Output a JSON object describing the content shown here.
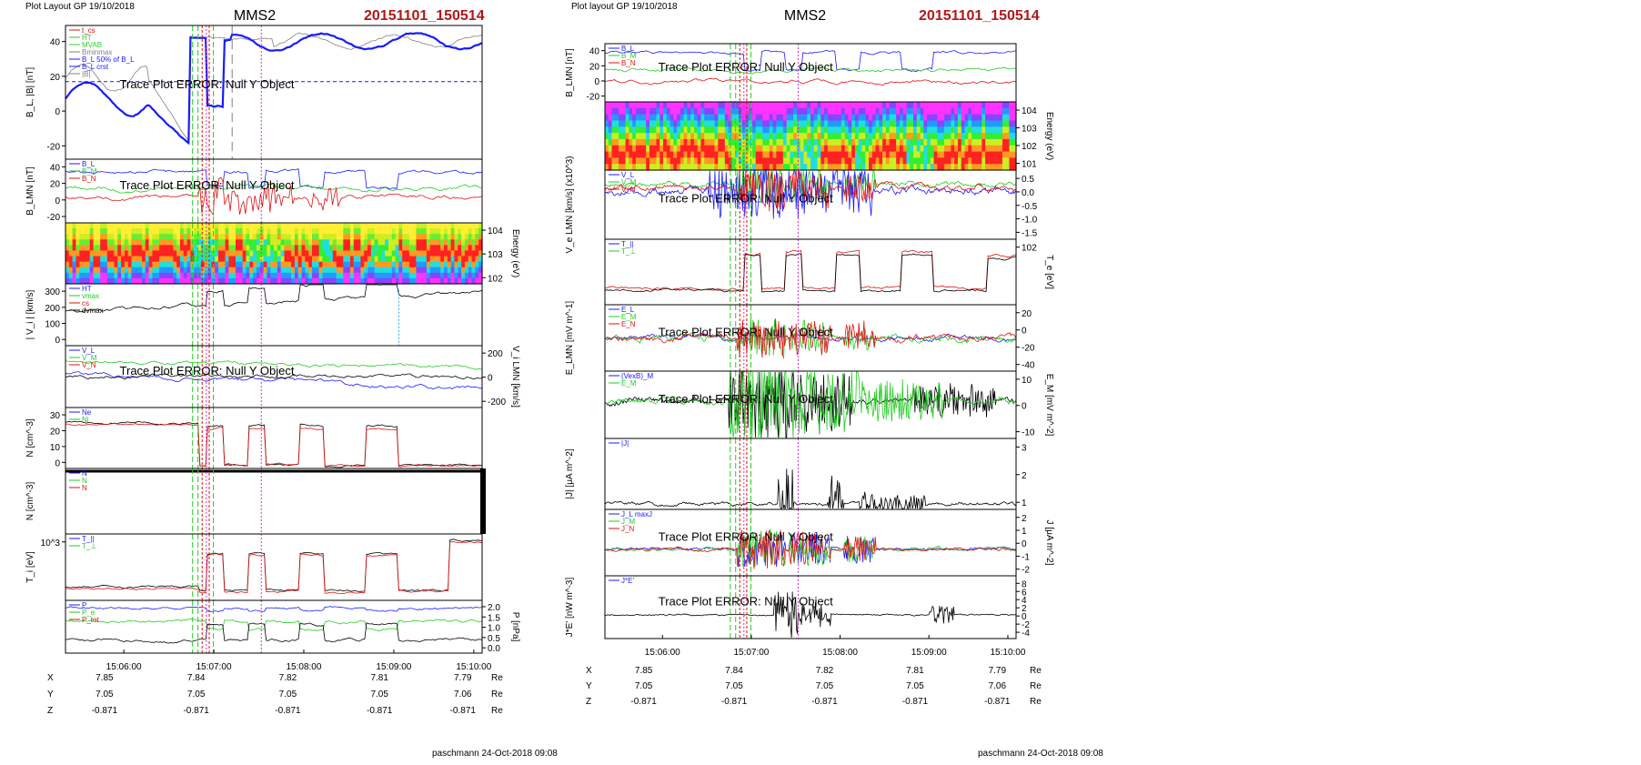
{
  "pages": [
    {
      "header_left": "Plot Layout GP 19/10/2018",
      "title": "MMS2",
      "event_id": "20151101_150514",
      "footer": "paschmann 24-Oct-2018 09:08",
      "panels": [
        {
          "ylabel": "B_L, |B| [nT]",
          "yticks": [
            "40",
            "20",
            "0",
            "-20"
          ],
          "legend": [
            "t_cs",
            "HT",
            "MVAB",
            "Bminmax",
            "B_L 50% of B_L",
            "B_L crst",
            "|B|"
          ],
          "error": "Trace Plot ERROR: Null Y Object"
        },
        {
          "ylabel": "B_LMN [nT]",
          "yticks": [
            "40",
            "20",
            "0",
            "-20"
          ],
          "legend": [
            "B_L",
            "B_M",
            "B_N"
          ],
          "error": "Trace Plot ERROR: Null Y Object"
        },
        {
          "ylabel": "Energy (eV)",
          "yticks": [
            "10^4",
            "10^3",
            "10^2"
          ]
        },
        {
          "ylabel": "| V_i | [km/s]",
          "yticks": [
            "300",
            "200",
            "100",
            "0"
          ],
          "legend": [
            "HT",
            "vmax",
            "cs",
            "dvmax"
          ]
        },
        {
          "ylabel": "V_i LMN [km/s]",
          "yticks": [
            "200",
            "0",
            "-200"
          ],
          "legend": [
            "V_L",
            "V_M",
            "V_N"
          ],
          "error": "Trace Plot ERROR: Null Y Object"
        },
        {
          "ylabel": "N [cm^-3]",
          "yticks": [
            "30",
            "20",
            "10",
            "0"
          ],
          "legend": [
            "Ne",
            "Ni"
          ]
        },
        {
          "ylabel": "N [cm^-3]",
          "legend": [
            "N",
            "N",
            "N"
          ]
        },
        {
          "ylabel": "T_i [eV]",
          "yticks": [
            "10^3"
          ],
          "legend": [
            "T_||",
            "T_⊥"
          ]
        },
        {
          "ylabel": "P [nPa]",
          "yticks": [
            "2.0",
            "1.5",
            "1.0",
            "0.5",
            "0.0"
          ],
          "legend": [
            "P",
            "P_e",
            "P_tot"
          ]
        }
      ],
      "xticks": [
        "15:06:00",
        "15:07:00",
        "15:08:00",
        "15:09:00",
        "15:10:00"
      ],
      "orbit": {
        "rows": [
          {
            "label": "X",
            "values": [
              "7.85",
              "7.84",
              "7.82",
              "7.81",
              "7.79"
            ],
            "unit": "Re"
          },
          {
            "label": "Y",
            "values": [
              "7.05",
              "7.05",
              "7.05",
              "7.05",
              "7.06"
            ],
            "unit": "Re"
          },
          {
            "label": "Z",
            "values": [
              "-0.871",
              "-0.871",
              "-0.871",
              "-0.871",
              "-0.871"
            ],
            "unit": "Re"
          }
        ]
      }
    },
    {
      "header_left": "Plot layout GP 19/10/2018",
      "title": "MMS2",
      "event_id": "20151101_150514",
      "footer": "paschmann 24-Oct-2018 09:08",
      "panels": [
        {
          "ylabel": "B_LMN [nT]",
          "yticks": [
            "40",
            "20",
            "0",
            "-20"
          ],
          "legend": [
            "B_L",
            "B_M",
            "B_N"
          ],
          "error": "Trace Plot ERROR: Null Y Object"
        },
        {
          "ylabel": "Energy (eV)",
          "yticks": [
            "10^4",
            "10^3",
            "10^2",
            "10^1"
          ]
        },
        {
          "ylabel": "V_e LMN [km/s] (x10^3)",
          "yticks": [
            "0.5",
            "0.0",
            "-0.5",
            "-1.0",
            "-1.5"
          ],
          "legend": [
            "V_L",
            "V_M",
            "V_N"
          ],
          "error": "Trace Plot ERROR: Null Y Object"
        },
        {
          "ylabel": "T_e [eV]",
          "yticks": [
            "10^2"
          ],
          "legend": [
            "T_||",
            "T_⊥"
          ]
        },
        {
          "ylabel": "E_LMN [mV m^-1]",
          "yticks": [
            "20",
            "0",
            "-20",
            "-40"
          ],
          "legend": [
            "E_L",
            "E_M",
            "E_N"
          ],
          "error": "Trace Plot ERROR: Null Y Object"
        },
        {
          "ylabel": "E_M [mV m^-2]",
          "yticks": [
            "10",
            "0",
            "-10"
          ],
          "legend": [
            "(VexB)_M",
            "E_M"
          ],
          "error": "Trace Plot ERROR: Null Y Object"
        },
        {
          "ylabel": "|J| [μA m^-2]",
          "yticks": [
            "3",
            "2",
            "1"
          ],
          "legend": [
            "|J|"
          ]
        },
        {
          "ylabel": "J [μA m^-2]",
          "yticks": [
            "2",
            "1",
            "0",
            "-1",
            "-2"
          ],
          "legend": [
            "J_L maxJ",
            "J_M",
            "J_N"
          ],
          "error": "Trace Plot ERROR: Null Y Object"
        },
        {
          "ylabel": "J*E' [nW m^-3]",
          "yticks": [
            "8",
            "6",
            "4",
            "2",
            "0",
            "-2",
            "-4"
          ],
          "legend": [
            "J*E'"
          ],
          "error": "Trace Plot ERROR: Null Y Object"
        }
      ],
      "xticks": [
        "15:06:00",
        "15:07:00",
        "15:08:00",
        "15:09:00",
        "15:10:00"
      ],
      "orbit": {
        "rows": [
          {
            "label": "X",
            "values": [
              "7.85",
              "7.84",
              "7.82",
              "7.81",
              "7.79"
            ],
            "unit": "Re"
          },
          {
            "label": "Y",
            "values": [
              "7.05",
              "7.05",
              "7.05",
              "7.05",
              "7.06"
            ],
            "unit": "Re"
          },
          {
            "label": "Z",
            "values": [
              "-0.871",
              "-0.871",
              "-0.871",
              "-0.871",
              "-0.871"
            ],
            "unit": "Re"
          }
        ]
      }
    }
  ],
  "colors": {
    "blue": "#1a1aff",
    "green": "#22cc22",
    "red": "#e01010",
    "black": "#000000",
    "gray": "#808080",
    "title_red": "#b01818",
    "magenta": "#cc33cc"
  },
  "chart_data": [
    {
      "type": "line",
      "title": "MMS2",
      "subtitle": "20151101_150514",
      "x_ticks": [
        "15:06:00",
        "15:07:00",
        "15:08:00",
        "15:09:00",
        "15:10:00"
      ],
      "xlabel": "",
      "panels": [
        {
          "ylabel": "B_L, |B| [nT]",
          "ylim": [
            -40,
            50
          ],
          "series": [
            {
              "name": "B_L"
            },
            {
              "name": "|B|"
            }
          ]
        },
        {
          "ylabel": "B_LMN [nT]",
          "ylim": [
            -30,
            50
          ],
          "series": [
            {
              "name": "B_L"
            },
            {
              "name": "B_M"
            },
            {
              "name": "B_N"
            }
          ]
        },
        {
          "ylabel": "Energy (eV)",
          "type": "heatmap",
          "log_scale": true
        },
        {
          "ylabel": "| V_i | [km/s]",
          "ylim": [
            0,
            350
          ]
        },
        {
          "ylabel": "V_i LMN [km/s]",
          "ylim": [
            -300,
            250
          ]
        },
        {
          "ylabel": "N [cm^-3]",
          "ylim": [
            0,
            30
          ]
        },
        {
          "ylabel": "N [cm^-3]"
        },
        {
          "ylabel": "T_i [eV]",
          "log_scale": true
        },
        {
          "ylabel": "P [nPa]",
          "ylim": [
            0,
            2.0
          ]
        }
      ]
    },
    {
      "type": "line",
      "title": "MMS2",
      "subtitle": "20151101_150514",
      "x_ticks": [
        "15:06:00",
        "15:07:00",
        "15:08:00",
        "15:09:00",
        "15:10:00"
      ],
      "panels": [
        {
          "ylabel": "B_LMN [nT]",
          "ylim": [
            -30,
            50
          ]
        },
        {
          "ylabel": "Energy (eV)",
          "type": "heatmap",
          "log_scale": true
        },
        {
          "ylabel": "V_e LMN [km/s] (x10^3)",
          "ylim": [
            -1.5,
            0.7
          ]
        },
        {
          "ylabel": "T_e [eV]",
          "log_scale": true
        },
        {
          "ylabel": "E_LMN [mV m^-1]",
          "ylim": [
            -40,
            35
          ]
        },
        {
          "ylabel": "E_M [mV m^-2]",
          "ylim": [
            -15,
            15
          ]
        },
        {
          "ylabel": "|J| [μA m^-2]",
          "ylim": [
            0,
            3.2
          ]
        },
        {
          "ylabel": "J [μA m^-2]",
          "ylim": [
            -2,
            2.5
          ]
        },
        {
          "ylabel": "J*E' [nW m^-3]",
          "ylim": [
            -5,
            9
          ]
        }
      ]
    }
  ]
}
